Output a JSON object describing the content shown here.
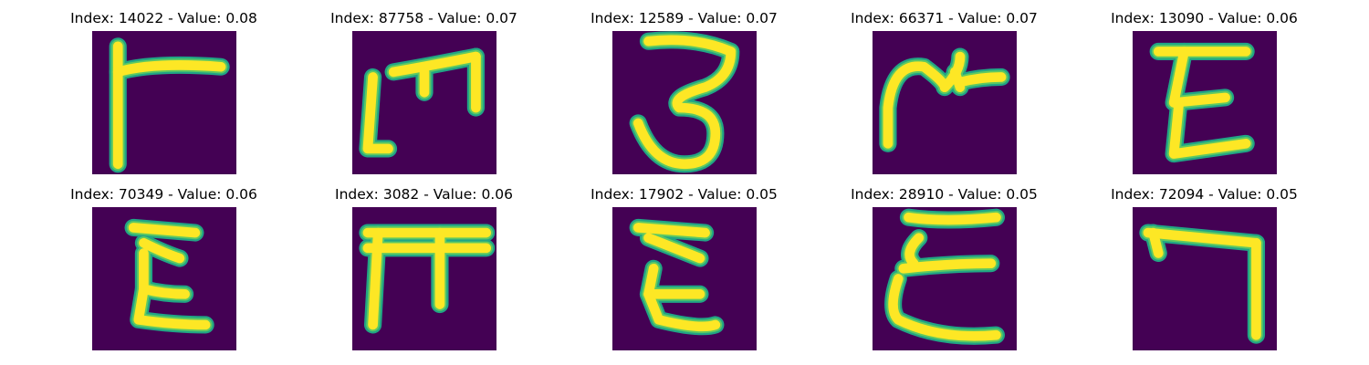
{
  "colors": {
    "background": "#440154",
    "stroke_core": "#fde725",
    "stroke_edge": "#21a585",
    "stroke_mid": "#5ec962"
  },
  "panels": [
    {
      "title": "Index: 14022 - Value: 0.08",
      "glyph": "hook-flag"
    },
    {
      "title": "Index: 87758 - Value: 0.07",
      "glyph": "bracket-m"
    },
    {
      "title": "Index: 12589 - Value: 0.07",
      "glyph": "three"
    },
    {
      "title": "Index: 66371 - Value: 0.07",
      "glyph": "crown"
    },
    {
      "title": "Index: 13090 - Value: 0.06",
      "glyph": "epsilon-block"
    },
    {
      "title": "Index: 70349 - Value: 0.06",
      "glyph": "sigma"
    },
    {
      "title": "Index: 3082 - Value: 0.06",
      "glyph": "pi"
    },
    {
      "title": "Index: 17902 - Value: 0.05",
      "glyph": "sigma-tail"
    },
    {
      "title": "Index: 28910 - Value: 0.05",
      "glyph": "epsilon-script"
    },
    {
      "title": "Index: 72094 - Value: 0.05",
      "glyph": "hook-right"
    }
  ]
}
